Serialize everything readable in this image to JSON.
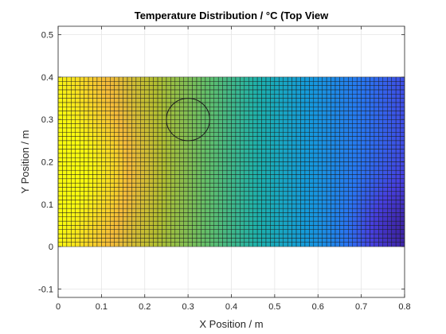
{
  "chart_data": {
    "type": "heatmap",
    "title": "Temperature Distribution / °C (Top View",
    "xlabel": "X Position / m",
    "ylabel": "Y Position / m",
    "xlim": [
      0,
      0.8
    ],
    "ylim": [
      -0.12,
      0.52
    ],
    "xticks": [
      "0",
      "0.1",
      "0.2",
      "0.3",
      "0.4",
      "0.5",
      "0.6",
      "0.7",
      "0.8"
    ],
    "yticks": [
      "-0.1",
      "0",
      "0.1",
      "0.2",
      "0.3",
      "0.4",
      "0.5"
    ],
    "grid": true,
    "colormap": "parula",
    "colorbar": false,
    "domain": {
      "x_range": [
        0,
        0.8
      ],
      "y_range": [
        0,
        0.4
      ],
      "nx": 80,
      "ny": 40,
      "hot_spot": [
        0.08,
        0.18
      ],
      "cold_spot": [
        0.79,
        0.03
      ]
    },
    "circle": {
      "center": [
        0.3,
        0.3
      ],
      "radius": 0.05
    },
    "colors": {
      "grid": "#e5e5e5",
      "axis": "#262626",
      "cell_edge": "#1a1a1a",
      "circle": "#1a1a1a"
    }
  }
}
